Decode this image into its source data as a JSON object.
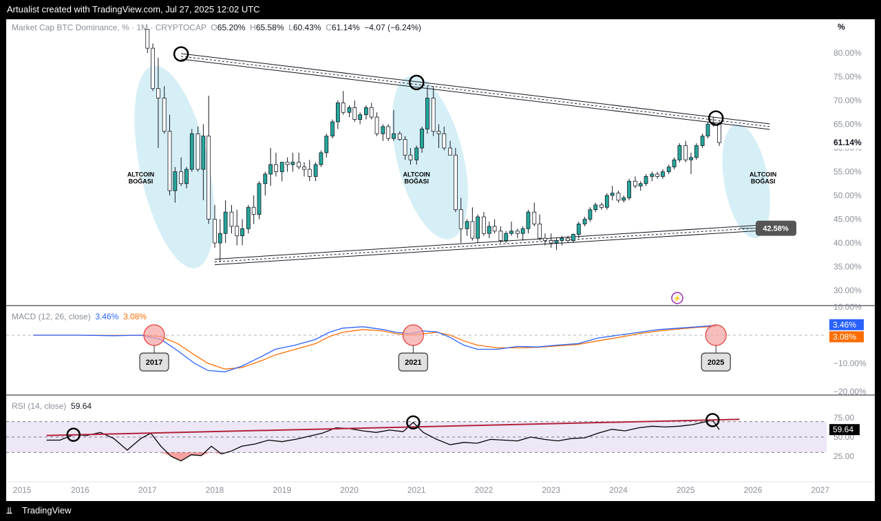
{
  "header": {
    "attribution": "Artualist created with TradingView.com, Jul 27, 2025 12:02 UTC"
  },
  "footer": {
    "brand_icon": "tradingview-logo-icon",
    "brand_label": "TradingView"
  },
  "toolbar": {
    "percent_button": "%"
  },
  "main_legend": {
    "symbol": "Market Cap BTC Dominance, % · 1M · CRYPTOCAP",
    "o_label": "O",
    "o_value": "65.20%",
    "h_label": "H",
    "h_value": "65.58%",
    "l_label": "L",
    "l_value": "60.43%",
    "c_label": "C",
    "c_value": "61.14%",
    "change": "−4.07 (−6.24%)"
  },
  "macd_legend": {
    "title": "MACD (12, 26, close)",
    "macd_value": "3.46%",
    "signal_value": "3.08%"
  },
  "rsi_legend": {
    "title": "RSI (14, close)",
    "value": "59.64"
  },
  "colors": {
    "bull": "#26a69a",
    "bear": "#ffffff",
    "macd_line": "#2962ff",
    "signal_line": "#ff6d00",
    "rsi_line": "#000000",
    "rsi_trend": "#b2223a",
    "ellipse": "#d6eff6",
    "rsi_band": "#ede7f6",
    "highlight_circle": "#f5a3a3"
  },
  "chart_data": [
    {
      "type": "candlestick",
      "title": "Market Cap BTC Dominance, % · 1M · CRYPTOCAP",
      "y_axis_ticks": [
        "80.00%",
        "75.00%",
        "70.00%",
        "65.00%",
        "60.00%",
        "55.00%",
        "50.00%",
        "45.00%",
        "40.00%",
        "35.00%",
        "30.00%"
      ],
      "ylim": [
        28,
        82
      ],
      "x_axis_ticks": [
        "2015",
        "2016",
        "2017",
        "2018",
        "2019",
        "2020",
        "2021",
        "2022",
        "2023",
        "2024",
        "2025",
        "2026",
        "2027"
      ],
      "last_price_label": "61.14%",
      "support_label": "42.58%",
      "annotations": [
        {
          "text": "ALTCOIN BOĞASI",
          "year": 2016.9
        },
        {
          "text": "ALTCOIN BOĞASI",
          "year": 2021.0
        },
        {
          "text": "ALTCOIN BOĞASI",
          "year": 2026.15
        }
      ],
      "upper_trendline": {
        "from": [
          2017.5,
          79.3
        ],
        "to": [
          2026.25,
          64.5
        ]
      },
      "lower_trendline": {
        "from": [
          2018.0,
          36.0
        ],
        "to": [
          2026.25,
          43.3
        ]
      },
      "marked_highs": [
        [
          2017.5,
          79.5
        ],
        [
          2021.0,
          73.5
        ],
        [
          2025.45,
          66.0
        ]
      ],
      "candles": [
        [
          2017.0,
          85.0,
          85.5,
          80.0,
          81.0
        ],
        [
          2017.08,
          81.0,
          84.0,
          72.0,
          72.5
        ],
        [
          2017.16,
          72.5,
          79.0,
          60.0,
          70.5
        ],
        [
          2017.25,
          70.5,
          73.0,
          63.0,
          63.5
        ],
        [
          2017.33,
          63.5,
          67.0,
          50.0,
          51.0
        ],
        [
          2017.41,
          51.0,
          56.0,
          48.5,
          55.0
        ],
        [
          2017.5,
          55.0,
          58.0,
          52.0,
          52.5
        ],
        [
          2017.58,
          52.5,
          56.0,
          51.5,
          55.5
        ],
        [
          2017.66,
          55.5,
          64.0,
          55.0,
          63.0
        ],
        [
          2017.75,
          63.0,
          64.5,
          55.0,
          55.5
        ],
        [
          2017.83,
          55.5,
          65.0,
          49.0,
          62.5
        ],
        [
          2017.91,
          62.5,
          71.0,
          44.0,
          45.0
        ],
        [
          2018.0,
          45.0,
          48.0,
          39.0,
          40.0
        ],
        [
          2018.08,
          40.0,
          45.0,
          36.0,
          42.0
        ],
        [
          2018.16,
          42.0,
          49.0,
          40.0,
          46.5
        ],
        [
          2018.25,
          46.5,
          48.0,
          42.0,
          43.5
        ],
        [
          2018.33,
          43.5,
          47.0,
          39.5,
          41.5
        ],
        [
          2018.41,
          41.5,
          45.0,
          39.5,
          43.0
        ],
        [
          2018.5,
          43.0,
          48.0,
          42.0,
          47.5
        ],
        [
          2018.58,
          47.5,
          50.0,
          44.0,
          46.0
        ],
        [
          2018.66,
          46.0,
          53.0,
          45.0,
          52.5
        ],
        [
          2018.75,
          52.5,
          55.0,
          50.0,
          54.5
        ],
        [
          2018.83,
          54.5,
          60.0,
          52.0,
          56.5
        ],
        [
          2018.91,
          56.5,
          59.0,
          54.0,
          55.0
        ],
        [
          2019.0,
          55.0,
          57.0,
          53.0,
          57.0
        ],
        [
          2019.08,
          57.0,
          58.0,
          55.0,
          56.5
        ],
        [
          2019.16,
          56.5,
          59.0,
          55.0,
          57.0
        ],
        [
          2019.25,
          57.0,
          59.0,
          55.5,
          56.0
        ],
        [
          2019.33,
          56.0,
          57.0,
          54.0,
          55.5
        ],
        [
          2019.41,
          55.5,
          57.5,
          53.0,
          54.0
        ],
        [
          2019.5,
          54.0,
          57.0,
          53.0,
          56.5
        ],
        [
          2019.58,
          56.5,
          59.5,
          56.0,
          59.0
        ],
        [
          2019.66,
          59.0,
          63.0,
          58.0,
          62.5
        ],
        [
          2019.75,
          62.5,
          66.0,
          62.0,
          65.5
        ],
        [
          2019.83,
          65.5,
          70.0,
          64.0,
          69.5
        ],
        [
          2019.91,
          69.5,
          72.0,
          67.0,
          67.5
        ],
        [
          2020.0,
          67.5,
          69.0,
          66.5,
          68.5
        ],
        [
          2020.08,
          68.5,
          70.0,
          65.5,
          66.0
        ],
        [
          2020.16,
          66.0,
          67.5,
          65.0,
          67.0
        ],
        [
          2020.25,
          67.0,
          69.0,
          66.0,
          68.5
        ],
        [
          2020.33,
          68.5,
          69.5,
          66.0,
          66.5
        ],
        [
          2020.41,
          66.5,
          67.5,
          62.5,
          63.0
        ],
        [
          2020.5,
          63.0,
          65.0,
          61.5,
          64.5
        ],
        [
          2020.58,
          64.5,
          65.0,
          61.5,
          62.0
        ],
        [
          2020.66,
          62.0,
          68.0,
          61.5,
          63.0
        ],
        [
          2020.75,
          63.0,
          63.5,
          61.5,
          61.8
        ],
        [
          2020.83,
          61.8,
          62.5,
          57.5,
          58.5
        ],
        [
          2020.91,
          58.5,
          60.0,
          56.5,
          57.5
        ],
        [
          2021.0,
          57.5,
          60.5,
          56.5,
          60.0
        ],
        [
          2021.08,
          60.0,
          64.5,
          59.0,
          64.0
        ],
        [
          2021.16,
          64.0,
          73.0,
          63.0,
          70.5
        ],
        [
          2021.25,
          70.5,
          73.0,
          62.5,
          63.5
        ],
        [
          2021.33,
          63.5,
          65.0,
          60.0,
          63.0
        ],
        [
          2021.41,
          63.0,
          64.5,
          59.5,
          60.0
        ],
        [
          2021.5,
          60.0,
          61.5,
          58.5,
          58.5
        ],
        [
          2021.58,
          58.5,
          60.0,
          46.5,
          47.0
        ],
        [
          2021.66,
          47.0,
          49.5,
          40.0,
          43.0
        ],
        [
          2021.75,
          43.0,
          45.0,
          41.5,
          44.5
        ],
        [
          2021.83,
          44.5,
          47.5,
          40.5,
          41.0
        ],
        [
          2021.91,
          41.0,
          46.0,
          40.0,
          45.5
        ],
        [
          2022.0,
          45.5,
          46.5,
          41.5,
          42.0
        ],
        [
          2022.08,
          42.0,
          44.5,
          41.0,
          43.5
        ],
        [
          2022.16,
          43.5,
          45.0,
          42.0,
          42.5
        ],
        [
          2022.25,
          42.5,
          43.5,
          40.0,
          40.5
        ],
        [
          2022.33,
          40.5,
          42.5,
          40.0,
          42.0
        ],
        [
          2022.41,
          42.0,
          44.5,
          41.5,
          42.5
        ],
        [
          2022.5,
          42.5,
          43.0,
          41.0,
          42.0
        ],
        [
          2022.58,
          42.0,
          43.5,
          40.5,
          43.0
        ],
        [
          2022.66,
          43.0,
          47.0,
          42.0,
          46.5
        ],
        [
          2022.75,
          46.5,
          48.5,
          43.5,
          44.0
        ],
        [
          2022.83,
          44.0,
          46.0,
          40.5,
          41.0
        ],
        [
          2022.91,
          41.0,
          42.0,
          39.5,
          40.5
        ],
        [
          2023.0,
          40.5,
          42.0,
          39.0,
          40.0
        ],
        [
          2023.08,
          40.0,
          41.0,
          38.5,
          40.5
        ],
        [
          2023.16,
          40.5,
          41.5,
          39.5,
          41.0
        ],
        [
          2023.25,
          41.0,
          41.5,
          40.0,
          40.5
        ],
        [
          2023.33,
          40.5,
          42.0,
          40.0,
          41.8
        ],
        [
          2023.41,
          41.8,
          44.5,
          41.0,
          44.0
        ],
        [
          2023.5,
          44.0,
          45.5,
          43.5,
          45.0
        ],
        [
          2023.58,
          45.0,
          47.5,
          44.5,
          47.0
        ],
        [
          2023.66,
          47.0,
          48.5,
          46.5,
          48.0
        ],
        [
          2023.75,
          48.0,
          48.5,
          47.0,
          47.5
        ],
        [
          2023.83,
          47.5,
          50.5,
          47.0,
          50.0
        ],
        [
          2023.91,
          50.0,
          52.0,
          49.0,
          50.5
        ],
        [
          2024.0,
          50.5,
          51.0,
          48.5,
          49.0
        ],
        [
          2024.08,
          49.0,
          50.0,
          48.5,
          49.5
        ],
        [
          2024.16,
          49.5,
          53.5,
          49.0,
          53.0
        ],
        [
          2024.25,
          53.0,
          54.0,
          51.5,
          52.0
        ],
        [
          2024.33,
          52.0,
          53.0,
          51.0,
          52.5
        ],
        [
          2024.41,
          52.5,
          54.5,
          52.0,
          54.0
        ],
        [
          2024.5,
          54.0,
          55.0,
          53.0,
          54.5
        ],
        [
          2024.58,
          54.5,
          55.0,
          53.5,
          54.0
        ],
        [
          2024.66,
          54.0,
          55.5,
          53.5,
          55.0
        ],
        [
          2024.75,
          55.0,
          56.5,
          54.5,
          56.0
        ],
        [
          2024.83,
          56.0,
          58.0,
          55.5,
          57.5
        ],
        [
          2024.91,
          57.5,
          61.0,
          57.0,
          60.5
        ],
        [
          2025.0,
          60.5,
          61.5,
          57.0,
          57.5
        ],
        [
          2025.08,
          57.5,
          59.0,
          54.5,
          58.0
        ],
        [
          2025.16,
          58.0,
          61.0,
          57.5,
          60.5
        ],
        [
          2025.25,
          60.5,
          63.0,
          60.0,
          62.5
        ],
        [
          2025.33,
          62.5,
          65.5,
          62.0,
          65.0
        ],
        [
          2025.41,
          65.0,
          66.5,
          64.5,
          65.2
        ],
        [
          2025.5,
          65.2,
          65.58,
          60.43,
          61.14
        ]
      ]
    },
    {
      "type": "line",
      "title": "MACD (12, 26, close)",
      "y_axis_ticks": [
        "10.00%",
        "0.00%",
        "−10.00%",
        "−20.00%"
      ],
      "ylim": [
        -20,
        10
      ],
      "series": [
        {
          "name": "MACD",
          "current": "3.46%",
          "x": [
            2015.3,
            2016.0,
            2016.5,
            2016.9,
            2017.2,
            2017.45,
            2017.7,
            2017.9,
            2018.15,
            2018.4,
            2018.7,
            2018.9,
            2019.2,
            2019.5,
            2019.7,
            2019.9,
            2020.2,
            2020.5,
            2020.7,
            2020.9,
            2021.1,
            2021.3,
            2021.5,
            2021.7,
            2021.9,
            2022.2,
            2022.5,
            2022.8,
            2023.1,
            2023.4,
            2023.7,
            2024.0,
            2024.3,
            2024.6,
            2024.9,
            2025.2,
            2025.45
          ],
          "values": [
            0.0,
            0.0,
            -0.2,
            0.0,
            -1.5,
            -5.5,
            -10.0,
            -12.5,
            -13.0,
            -11.0,
            -7.5,
            -5.0,
            -3.5,
            -1.5,
            1.0,
            2.5,
            3.0,
            2.0,
            1.0,
            0.5,
            1.5,
            1.2,
            -0.8,
            -3.5,
            -5.0,
            -5.0,
            -4.0,
            -4.2,
            -3.5,
            -3.0,
            -1.0,
            0.0,
            1.0,
            2.0,
            2.5,
            3.0,
            3.46
          ]
        },
        {
          "name": "Signal",
          "current": "3.08%",
          "x": [
            2015.3,
            2016.0,
            2016.5,
            2016.9,
            2017.2,
            2017.45,
            2017.7,
            2017.9,
            2018.15,
            2018.4,
            2018.7,
            2018.9,
            2019.2,
            2019.5,
            2019.7,
            2019.9,
            2020.2,
            2020.5,
            2020.7,
            2020.9,
            2021.1,
            2021.3,
            2021.5,
            2021.7,
            2021.9,
            2022.2,
            2022.5,
            2022.8,
            2023.1,
            2023.4,
            2023.7,
            2024.0,
            2024.3,
            2024.6,
            2024.9,
            2025.2,
            2025.45
          ],
          "values": [
            0.0,
            0.0,
            -0.1,
            0.0,
            -0.5,
            -3.0,
            -7.0,
            -10.0,
            -12.0,
            -11.5,
            -9.0,
            -7.0,
            -5.0,
            -3.0,
            -0.5,
            1.0,
            2.0,
            1.5,
            0.5,
            0.0,
            0.5,
            1.0,
            0.0,
            -2.0,
            -3.5,
            -4.5,
            -4.5,
            -4.3,
            -3.8,
            -3.3,
            -2.0,
            -0.8,
            0.5,
            1.5,
            2.2,
            2.8,
            3.08
          ]
        }
      ],
      "markers": [
        {
          "label": "2017",
          "year": 2017.1
        },
        {
          "label": "2021",
          "year": 2020.95
        },
        {
          "label": "2025",
          "year": 2025.45
        }
      ]
    },
    {
      "type": "line",
      "title": "RSI (14, close)",
      "y_axis_ticks": [
        "75.00",
        "50.00",
        "25.00"
      ],
      "ylim": [
        0,
        100
      ],
      "series": [
        {
          "name": "RSI",
          "current": "59.64",
          "x": [
            2015.5,
            2015.7,
            2015.9,
            2016.1,
            2016.3,
            2016.5,
            2016.7,
            2016.9,
            2017.05,
            2017.2,
            2017.35,
            2017.5,
            2017.65,
            2017.8,
            2017.95,
            2018.1,
            2018.25,
            2018.4,
            2018.6,
            2018.8,
            2019.0,
            2019.2,
            2019.4,
            2019.6,
            2019.8,
            2020.0,
            2020.2,
            2020.4,
            2020.6,
            2020.8,
            2020.95,
            2021.1,
            2021.3,
            2021.5,
            2021.7,
            2021.9,
            2022.1,
            2022.3,
            2022.5,
            2022.7,
            2022.9,
            2023.1,
            2023.3,
            2023.5,
            2023.7,
            2023.9,
            2024.1,
            2024.3,
            2024.5,
            2024.7,
            2024.9,
            2025.1,
            2025.3,
            2025.4,
            2025.5
          ],
          "values": [
            46,
            46,
            53,
            52,
            56,
            48,
            33,
            48,
            55,
            38,
            25,
            19,
            27,
            26,
            38,
            28,
            32,
            38,
            41,
            46,
            44,
            47,
            51,
            55,
            62,
            61,
            58,
            56,
            59,
            57,
            69,
            56,
            47,
            40,
            43,
            42,
            47,
            46,
            45,
            50,
            47,
            45,
            48,
            49,
            55,
            60,
            58,
            62,
            64,
            63,
            64,
            66,
            70,
            72,
            59.64
          ]
        }
      ],
      "trendline": {
        "from": [
          2015.5,
          52
        ],
        "to": [
          2025.8,
          73
        ]
      },
      "marked_points": [
        [
          2015.9,
          53
        ],
        [
          2020.95,
          69
        ],
        [
          2025.4,
          72
        ]
      ]
    }
  ]
}
